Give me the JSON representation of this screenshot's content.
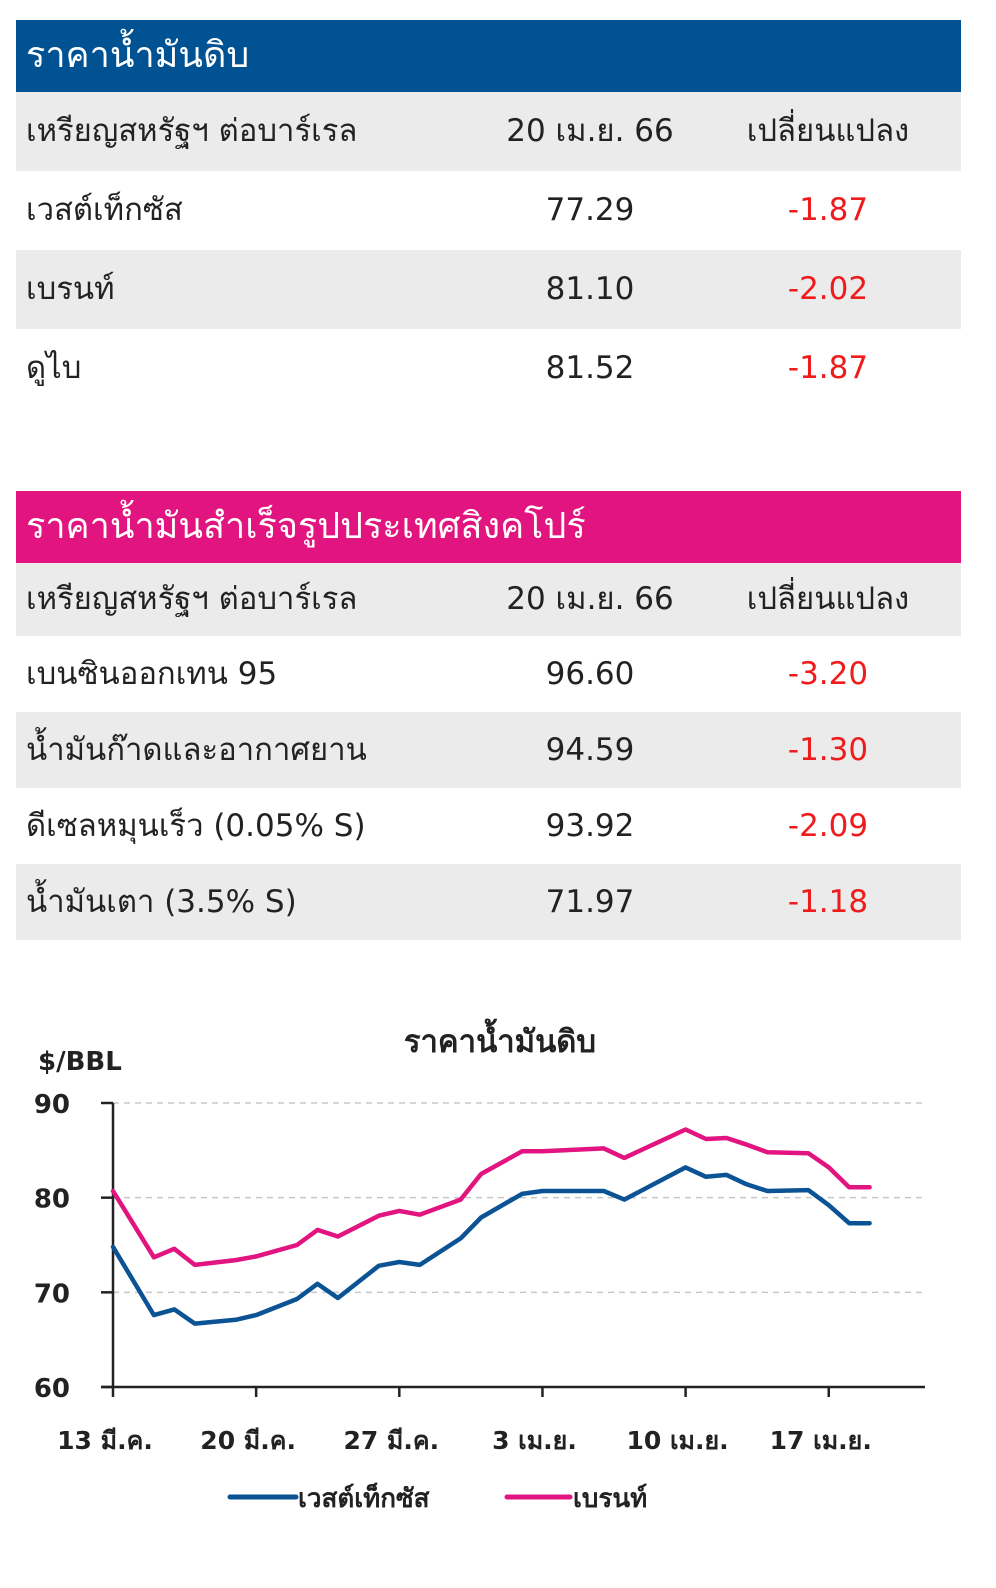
{
  "crude_table": {
    "title": "ราคาน้ำมันดิบ",
    "header": [
      "เหรียญสหรัฐฯ ต่อบาร์เรล",
      "20 เม.ย. 66",
      "เปลี่ยนแปลง"
    ],
    "rows": [
      {
        "name": "เวสต์เท็กซัส",
        "price": "77.29",
        "change": "-1.87"
      },
      {
        "name": "เบรนท์",
        "price": "81.10",
        "change": "-2.02"
      },
      {
        "name": "ดูไบ",
        "price": "81.52",
        "change": "-1.87"
      }
    ]
  },
  "product_table": {
    "title": "ราคาน้ำมันสำเร็จรูปประเทศสิงคโปร์",
    "header": [
      "เหรียญสหรัฐฯ ต่อบาร์เรล",
      "20 เม.ย. 66",
      "เปลี่ยนแปลง"
    ],
    "rows": [
      {
        "name": "เบนซินออกเทน 95",
        "price": "96.60",
        "change": "-3.20"
      },
      {
        "name": "น้ำมันก๊าดและอากาศยาน",
        "price": "94.59",
        "change": "-1.30"
      },
      {
        "name": "ดีเซลหมุนเร็ว (0.05% S)",
        "price": "93.92",
        "change": "-2.09"
      },
      {
        "name": "น้ำมันเตา (3.5% S)",
        "price": "71.97",
        "change": "-1.18"
      }
    ]
  },
  "colors": {
    "crude_header": "#005293",
    "product_header": "#e2147f",
    "negative": "#ee1c1c",
    "wti_line": "#0b5394",
    "brent_line": "#e2147f"
  },
  "chart_data": {
    "type": "line",
    "title": "ราคาน้ำมันดิบ",
    "ylabel": "$/BBL",
    "ylim": [
      60,
      90
    ],
    "yticks": [
      60,
      70,
      80,
      90
    ],
    "grid": "horizontal dashed",
    "legend_position": "bottom",
    "xtick_labels": [
      {
        "x": 0,
        "label": "13 มี.ค."
      },
      {
        "x": 7,
        "label": "20 มี.ค."
      },
      {
        "x": 14,
        "label": "27 มี.ค."
      },
      {
        "x": 21,
        "label": "3 เม.ย."
      },
      {
        "x": 28,
        "label": "10 เม.ย."
      },
      {
        "x": 35,
        "label": "17 เม.ย."
      }
    ],
    "x": [
      0,
      2,
      3,
      4,
      6,
      7,
      9,
      10,
      11,
      13,
      14,
      15,
      17,
      18,
      20,
      21,
      24,
      25,
      28,
      29,
      30,
      31,
      32,
      34,
      35,
      36,
      37
    ],
    "series": [
      {
        "name": "เวสต์เท็กซัส",
        "values": [
          74.8,
          67.6,
          68.2,
          66.7,
          67.1,
          67.6,
          69.3,
          70.9,
          69.4,
          72.8,
          73.2,
          72.9,
          75.7,
          77.9,
          80.4,
          80.7,
          80.7,
          79.8,
          83.2,
          82.2,
          82.4,
          81.4,
          80.7,
          80.8,
          79.2,
          77.3,
          77.3
        ],
        "color": "#0b5394"
      },
      {
        "name": "เบรนท์",
        "values": [
          80.7,
          73.7,
          74.6,
          72.9,
          73.4,
          73.8,
          75.0,
          76.6,
          75.9,
          78.1,
          78.6,
          78.2,
          79.8,
          82.5,
          84.9,
          84.9,
          85.2,
          84.2,
          87.2,
          86.2,
          86.3,
          85.6,
          84.8,
          84.7,
          83.2,
          81.1,
          81.1
        ]
      }
    ]
  }
}
